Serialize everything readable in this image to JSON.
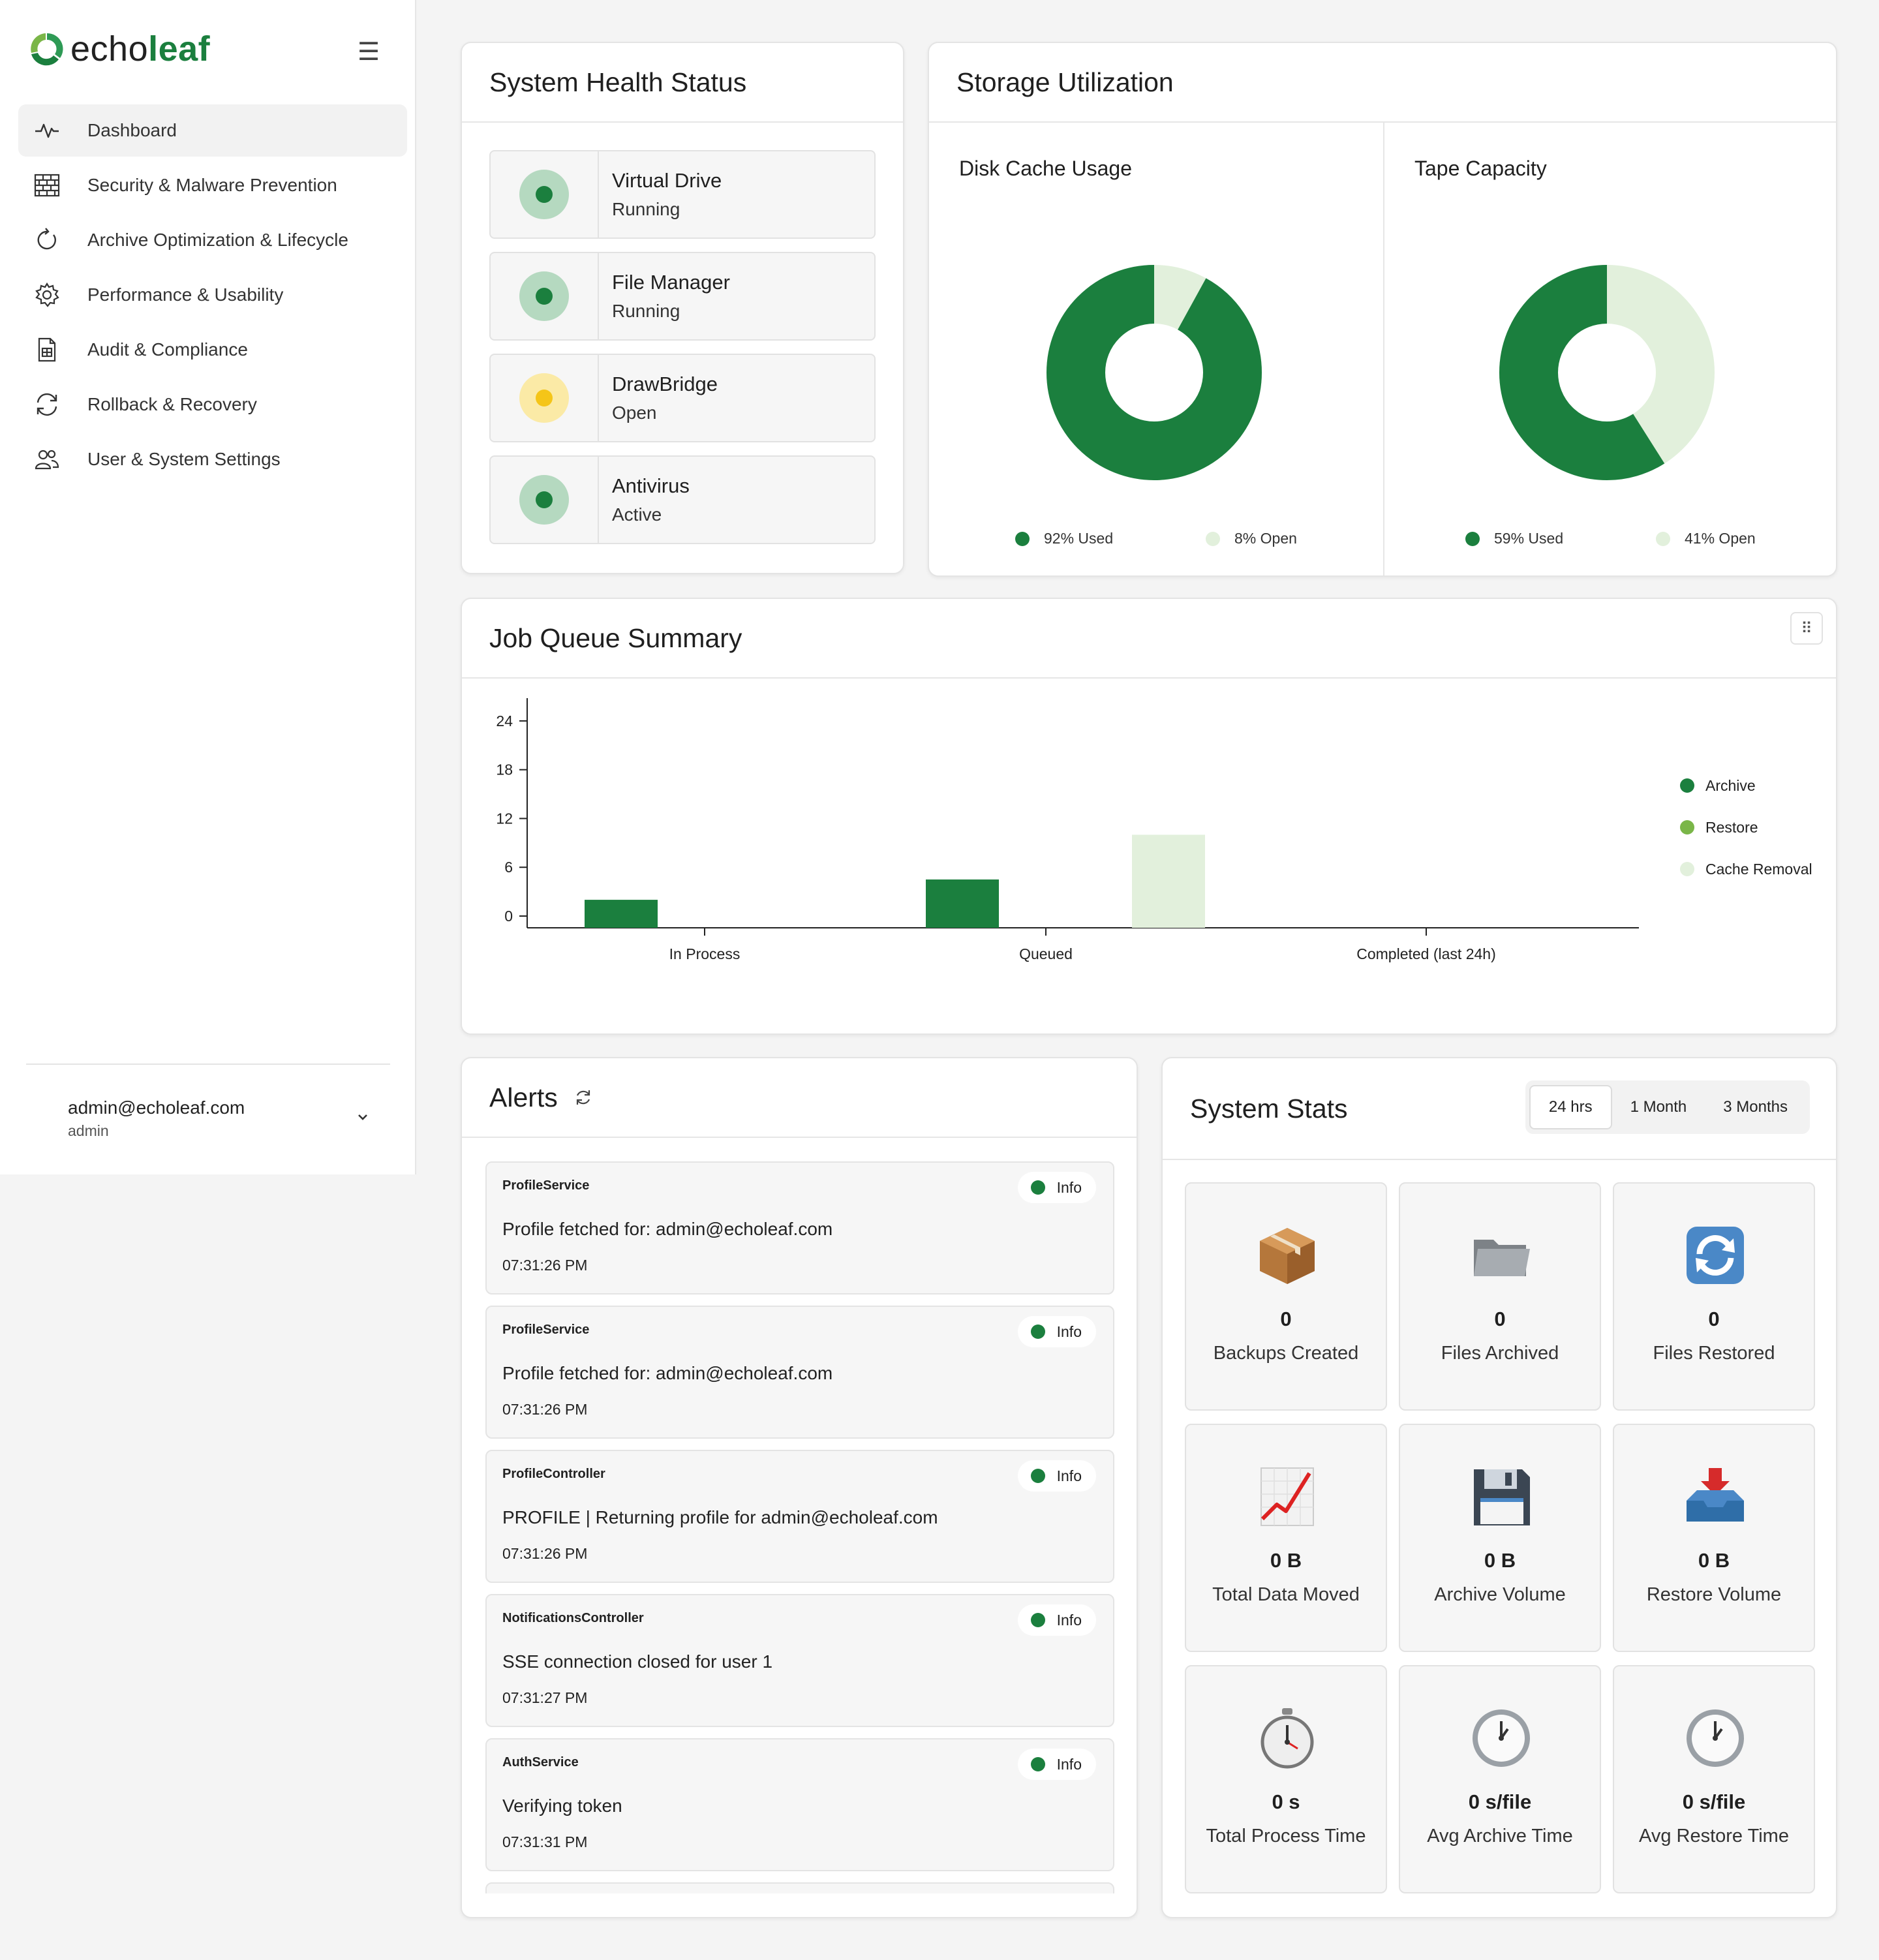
{
  "brand": {
    "part1": "echo",
    "part2": "leaf"
  },
  "sidebar": {
    "items": [
      {
        "label": "Dashboard",
        "icon": "activity-icon",
        "active": true
      },
      {
        "label": "Security & Malware Prevention",
        "icon": "firewall-icon"
      },
      {
        "label": "Archive Optimization & Lifecycle",
        "icon": "refresh-cw-icon"
      },
      {
        "label": "Performance & Usability",
        "icon": "gear-icon"
      },
      {
        "label": "Audit & Compliance",
        "icon": "document-icon"
      },
      {
        "label": "Rollback & Recovery",
        "icon": "rotate-icon"
      },
      {
        "label": "User & System Settings",
        "icon": "users-icon"
      }
    ],
    "user": {
      "email": "admin@echoleaf.com",
      "role": "admin"
    }
  },
  "colors": {
    "primary": "#1b7f3e",
    "accent": "#7ab648",
    "light": "#e2f0dc",
    "warning": "#f5c518",
    "warning_halo": "#fbeaa6",
    "healthy_halo": "#b5d9c0"
  },
  "health": {
    "title": "System Health Status",
    "items": [
      {
        "name": "Virtual Drive",
        "status": "Running",
        "level": "ok"
      },
      {
        "name": "File Manager",
        "status": "Running",
        "level": "ok"
      },
      {
        "name": "DrawBridge",
        "status": "Open",
        "level": "warn"
      },
      {
        "name": "Antivirus",
        "status": "Active",
        "level": "ok"
      }
    ]
  },
  "storage": {
    "title": "Storage Utilization",
    "disk": {
      "title": "Disk Cache Usage",
      "used_pct": 92,
      "used_label": "92% Used",
      "open_label": "8% Open"
    },
    "tape": {
      "title": "Tape Capacity",
      "used_pct": 59,
      "used_label": "59% Used",
      "open_label": "41% Open"
    }
  },
  "jobs": {
    "title": "Job Queue Summary",
    "menu_icon": "grip-dots-icon"
  },
  "chart_data": {
    "type": "bar",
    "title": "",
    "xlabel": "",
    "ylabel": "",
    "categories": [
      "In Process",
      "Queued",
      "Completed (last 24h)"
    ],
    "series": [
      {
        "name": "Archive",
        "values": [
          2,
          4.5,
          0
        ],
        "color": "#1b7f3e"
      },
      {
        "name": "Restore",
        "values": [
          0,
          0,
          0
        ],
        "color": "#7ab648"
      },
      {
        "name": "Cache Removal",
        "values": [
          0,
          10,
          0
        ],
        "color": "#e2f0dc"
      }
    ],
    "ylim": [
      0,
      26
    ],
    "yticks": [
      0,
      6,
      12,
      18,
      24
    ],
    "grid": false,
    "legend": "right"
  },
  "alerts": {
    "title": "Alerts",
    "items": [
      {
        "source": "ProfileService",
        "level": "Info",
        "message": "Profile fetched for: admin@echoleaf.com",
        "time": "07:31:26 PM"
      },
      {
        "source": "ProfileService",
        "level": "Info",
        "message": "Profile fetched for: admin@echoleaf.com",
        "time": "07:31:26 PM"
      },
      {
        "source": "ProfileController",
        "level": "Info",
        "message": "PROFILE | Returning profile for admin@echoleaf.com",
        "time": "07:31:26 PM"
      },
      {
        "source": "NotificationsController",
        "level": "Info",
        "message": "SSE connection closed for user 1",
        "time": "07:31:27 PM"
      },
      {
        "source": "AuthService",
        "level": "Info",
        "message": "Verifying token",
        "time": "07:31:31 PM"
      }
    ]
  },
  "stats": {
    "title": "System Stats",
    "tabs": [
      {
        "label": "24 hrs",
        "active": true
      },
      {
        "label": "1 Month"
      },
      {
        "label": "3 Months"
      }
    ],
    "tiles": [
      {
        "value": "0",
        "label": "Backups Created",
        "icon": "package-icon"
      },
      {
        "value": "0",
        "label": "Files Archived",
        "icon": "folder-icon"
      },
      {
        "value": "0",
        "label": "Files Restored",
        "icon": "sync-icon"
      },
      {
        "value": "0 B",
        "label": "Total Data Moved",
        "icon": "chart-up-icon"
      },
      {
        "value": "0 B",
        "label": "Archive Volume",
        "icon": "floppy-disk-icon"
      },
      {
        "value": "0 B",
        "label": "Restore Volume",
        "icon": "inbox-tray-icon"
      },
      {
        "value": "0 s",
        "label": "Total Process Time",
        "icon": "stopwatch-icon"
      },
      {
        "value": "0 s/file",
        "label": "Avg Archive Time",
        "icon": "clock-icon"
      },
      {
        "value": "0 s/file",
        "label": "Avg Restore Time",
        "icon": "clock-icon"
      }
    ]
  }
}
